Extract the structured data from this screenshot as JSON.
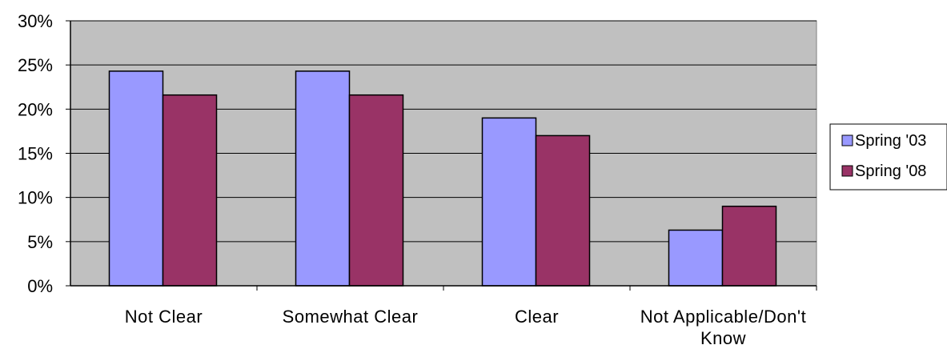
{
  "chart_data": {
    "type": "bar",
    "categories": [
      [
        "Not Clear"
      ],
      [
        "Somewhat Clear"
      ],
      [
        "Clear"
      ],
      [
        "Not Applicable/Don't",
        "Know"
      ]
    ],
    "series": [
      {
        "name": "Spring '03",
        "color": "#9999ff",
        "values": [
          24.3,
          24.3,
          19.0,
          6.3
        ]
      },
      {
        "name": "Spring '08",
        "color": "#993366",
        "values": [
          21.6,
          21.6,
          17.0,
          9.0
        ]
      }
    ],
    "yticks": [
      "0%",
      "5%",
      "10%",
      "15%",
      "20%",
      "25%",
      "30%"
    ],
    "ylim": [
      0,
      30
    ],
    "title": "",
    "xlabel": "",
    "ylabel": "",
    "grid": true,
    "plot_background": "#c0c0c0",
    "legend_position": "right"
  }
}
